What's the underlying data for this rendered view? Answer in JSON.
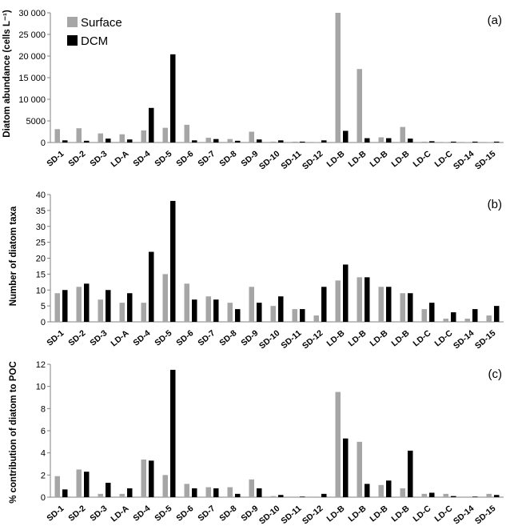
{
  "colors": {
    "surface": "#a6a6a6",
    "dcm": "#000000",
    "axis": "#808080"
  },
  "categories": [
    "SD-1",
    "SD-2",
    "SD-3",
    "LD-A",
    "SD-4",
    "SD-5",
    "SD-6",
    "SD-7",
    "SD-8",
    "SD-9",
    "SD-10",
    "SD-11",
    "SD-12",
    "LD-B",
    "LD-B",
    "LD-B",
    "LD-B",
    "LD-C",
    "LD-C",
    "SD-14",
    "SD-15"
  ],
  "chart_data": [
    {
      "type": "bar",
      "panel_label": "(a)",
      "ylabel": "Diatom abundance  (cells L⁻¹)",
      "ylim": [
        0,
        30000
      ],
      "yticks": [
        0,
        5000,
        10000,
        15000,
        20000,
        25000,
        30000
      ],
      "ytick_labels": [
        "0",
        "5000",
        "10 000",
        "15 000",
        "20 000",
        "25 000",
        "30 000"
      ],
      "legend": {
        "position": "top-left",
        "entries": [
          "Surface",
          "DCM"
        ]
      },
      "categories": [
        "SD-1",
        "SD-2",
        "SD-3",
        "LD-A",
        "SD-4",
        "SD-5",
        "SD-6",
        "SD-7",
        "SD-8",
        "SD-9",
        "SD-10",
        "SD-11",
        "SD-12",
        "LD-B",
        "LD-B",
        "LD-B",
        "LD-B",
        "LD-C",
        "LD-C",
        "SD-14",
        "SD-15"
      ],
      "series": [
        {
          "name": "Surface",
          "values": [
            3100,
            3300,
            2100,
            1900,
            2800,
            3400,
            4100,
            1100,
            800,
            2500,
            200,
            200,
            100,
            30000,
            17000,
            1200,
            3600,
            200,
            100,
            100,
            100
          ]
        },
        {
          "name": "DCM",
          "values": [
            500,
            400,
            900,
            700,
            8000,
            20400,
            500,
            800,
            400,
            700,
            500,
            200,
            500,
            2700,
            1000,
            1000,
            900,
            300,
            200,
            200,
            200
          ]
        }
      ]
    },
    {
      "type": "bar",
      "panel_label": "(b)",
      "ylabel": "Number of diatom taxa",
      "ylim": [
        0,
        40
      ],
      "yticks": [
        0,
        5,
        10,
        15,
        20,
        25,
        30,
        35,
        40
      ],
      "ytick_labels": [
        "0",
        "5",
        "10",
        "15",
        "20",
        "25",
        "30",
        "35",
        "40"
      ],
      "categories": [
        "SD-1",
        "SD-2",
        "SD-3",
        "LD-A",
        "SD-4",
        "SD-5",
        "SD-6",
        "SD-7",
        "SD-8",
        "SD-9",
        "SD-10",
        "SD-11",
        "SD-12",
        "LD-B",
        "LD-B",
        "LD-B",
        "LD-B",
        "LD-C",
        "LD-C",
        "SD-14",
        "SD-15"
      ],
      "series": [
        {
          "name": "Surface",
          "values": [
            9,
            11,
            7,
            6,
            6,
            15,
            12,
            8,
            6,
            11,
            5,
            4,
            2,
            13,
            14,
            11,
            9,
            4,
            1,
            1,
            2
          ]
        },
        {
          "name": "DCM",
          "values": [
            10,
            12,
            10,
            9,
            22,
            38,
            7,
            7,
            4,
            6,
            8,
            4,
            11,
            18,
            14,
            11,
            9,
            6,
            3,
            4,
            5
          ]
        }
      ]
    },
    {
      "type": "bar",
      "panel_label": "(c)",
      "ylabel": "% contribution of diatom to POC",
      "ylim": [
        0,
        12
      ],
      "yticks": [
        0,
        2,
        4,
        6,
        8,
        10,
        12
      ],
      "ytick_labels": [
        "0",
        "2",
        "4",
        "6",
        "8",
        "10",
        "12"
      ],
      "categories": [
        "SD-1",
        "SD-2",
        "SD-3",
        "LD-A",
        "SD-4",
        "SD-5",
        "SD-6",
        "SD-7",
        "SD-8",
        "SD-9",
        "SD-10",
        "SD-11",
        "SD-12",
        "LD-B",
        "LD-B",
        "LD-B",
        "LD-B",
        "LD-C",
        "LD-C",
        "SD-14",
        "SD-15"
      ],
      "series": [
        {
          "name": "Surface",
          "values": [
            1.9,
            2.5,
            0.3,
            0.3,
            3.4,
            2.0,
            1.2,
            0.9,
            0.9,
            1.6,
            0.1,
            0.05,
            0.05,
            9.5,
            5.0,
            1.1,
            0.8,
            0.3,
            0.3,
            0.05,
            0.3
          ]
        },
        {
          "name": "DCM",
          "values": [
            0.7,
            2.3,
            1.3,
            0.8,
            3.3,
            11.5,
            0.8,
            0.8,
            0.3,
            0.8,
            0.2,
            0.05,
            0.3,
            5.3,
            1.2,
            1.5,
            4.2,
            0.4,
            0.1,
            0.05,
            0.2
          ]
        }
      ]
    }
  ]
}
